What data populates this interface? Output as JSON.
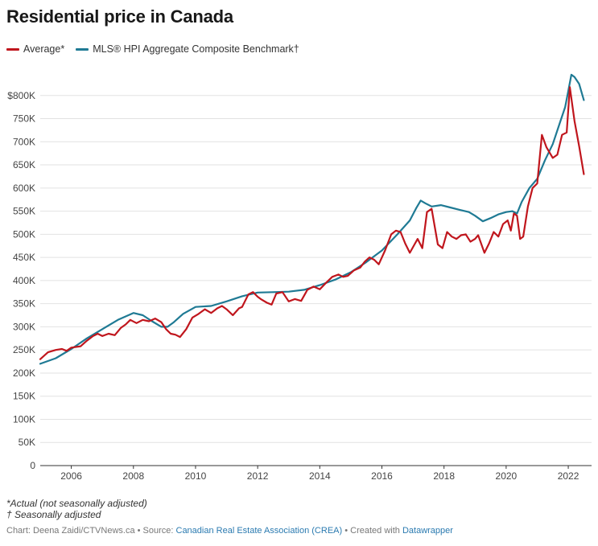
{
  "title": "Residential price in Canada",
  "notes": {
    "note1": "*Actual (not seasonally adjusted)",
    "note2": "† Seasonally adjusted"
  },
  "footer": {
    "chart_by": "Chart: Deena Zaidi/CTVNews.ca",
    "sep1": " • Source: ",
    "source": "Canadian Real Estate Association (CREA)",
    "sep2": " • Created with ",
    "tool": "Datawrapper"
  },
  "chart_data": {
    "type": "line",
    "title": "Residential price in Canada",
    "xlabel": "",
    "ylabel": "",
    "xlim": [
      2005.0,
      2022.75
    ],
    "ylim": [
      0,
      850000
    ],
    "grid": true,
    "legend_placement": "top-left",
    "y_ticks": [
      0,
      50000,
      100000,
      150000,
      200000,
      250000,
      300000,
      350000,
      400000,
      450000,
      500000,
      550000,
      600000,
      650000,
      700000,
      750000,
      800000
    ],
    "y_tick_labels": [
      "0",
      "50K",
      "100K",
      "150K",
      "200K",
      "250K",
      "300K",
      "350K",
      "400K",
      "450K",
      "500K",
      "550K",
      "600K",
      "650K",
      "700K",
      "750K",
      "$800K"
    ],
    "x_ticks": [
      2006,
      2008,
      2010,
      2012,
      2014,
      2016,
      2018,
      2020,
      2022
    ],
    "x_tick_labels": [
      "2006",
      "2008",
      "2010",
      "2012",
      "2014",
      "2016",
      "2018",
      "2020",
      "2022"
    ],
    "series": [
      {
        "name": "Average*",
        "color": "#c0161d",
        "x": [
          2005.0,
          2005.25,
          2005.5,
          2005.7,
          2005.85,
          2006.0,
          2006.3,
          2006.5,
          2006.7,
          2006.85,
          2007.0,
          2007.2,
          2007.4,
          2007.6,
          2007.75,
          2007.9,
          2008.1,
          2008.3,
          2008.5,
          2008.7,
          2008.9,
          2009.05,
          2009.2,
          2009.35,
          2009.5,
          2009.7,
          2009.9,
          2010.1,
          2010.3,
          2010.5,
          2010.7,
          2010.85,
          2011.0,
          2011.2,
          2011.4,
          2011.5,
          2011.7,
          2011.85,
          2012.0,
          2012.1,
          2012.3,
          2012.45,
          2012.6,
          2012.8,
          2013.0,
          2013.2,
          2013.4,
          2013.6,
          2013.8,
          2014.0,
          2014.2,
          2014.4,
          2014.6,
          2014.75,
          2014.9,
          2015.1,
          2015.3,
          2015.45,
          2015.6,
          2015.75,
          2015.9,
          2016.1,
          2016.3,
          2016.45,
          2016.6,
          2016.75,
          2016.9,
          2017.05,
          2017.15,
          2017.3,
          2017.45,
          2017.6,
          2017.8,
          2017.95,
          2018.1,
          2018.25,
          2018.4,
          2018.55,
          2018.7,
          2018.85,
          2019.0,
          2019.1,
          2019.3,
          2019.45,
          2019.6,
          2019.75,
          2019.9,
          2020.05,
          2020.15,
          2020.25,
          2020.35,
          2020.45,
          2020.55,
          2020.7,
          2020.85,
          2021.0,
          2021.15,
          2021.3,
          2021.5,
          2021.65,
          2021.8,
          2021.95,
          2022.05,
          2022.2,
          2022.35,
          2022.5
        ],
        "y": [
          230000,
          245000,
          250000,
          252000,
          248000,
          255000,
          258000,
          270000,
          280000,
          285000,
          280000,
          285000,
          282000,
          298000,
          305000,
          315000,
          308000,
          315000,
          312000,
          318000,
          310000,
          295000,
          285000,
          283000,
          278000,
          295000,
          320000,
          328000,
          338000,
          330000,
          340000,
          345000,
          338000,
          325000,
          340000,
          343000,
          370000,
          375000,
          365000,
          360000,
          352000,
          348000,
          372000,
          375000,
          355000,
          360000,
          356000,
          380000,
          387000,
          381000,
          395000,
          408000,
          413000,
          408000,
          410000,
          422000,
          428000,
          441000,
          450000,
          445000,
          435000,
          465000,
          500000,
          508000,
          505000,
          480000,
          460000,
          478000,
          490000,
          470000,
          548000,
          555000,
          478000,
          470000,
          505000,
          495000,
          490000,
          498000,
          500000,
          484000,
          490000,
          498000,
          460000,
          480000,
          505000,
          495000,
          522000,
          530000,
          508000,
          545000,
          540000,
          490000,
          495000,
          560000,
          600000,
          610000,
          715000,
          688000,
          665000,
          672000,
          715000,
          720000,
          818000,
          745000,
          690000,
          630000
        ]
      },
      {
        "name": "MLS® HPI Aggregate Composite Benchmark†",
        "color": "#1f7a94",
        "x": [
          2005.0,
          2005.5,
          2006.0,
          2006.5,
          2007.0,
          2007.5,
          2008.0,
          2008.3,
          2008.6,
          2008.9,
          2009.1,
          2009.3,
          2009.6,
          2010.0,
          2010.5,
          2011.0,
          2011.5,
          2012.0,
          2012.5,
          2013.0,
          2013.5,
          2014.0,
          2014.5,
          2015.0,
          2015.5,
          2016.0,
          2016.5,
          2016.9,
          2017.1,
          2017.25,
          2017.4,
          2017.6,
          2017.9,
          2018.2,
          2018.5,
          2018.8,
          2019.0,
          2019.25,
          2019.5,
          2019.75,
          2020.0,
          2020.2,
          2020.35,
          2020.5,
          2020.75,
          2021.0,
          2021.25,
          2021.5,
          2021.75,
          2021.9,
          2022.0,
          2022.1,
          2022.2,
          2022.35,
          2022.5
        ],
        "y": [
          220000,
          232000,
          252000,
          275000,
          295000,
          315000,
          330000,
          325000,
          312000,
          300000,
          300000,
          310000,
          328000,
          343000,
          345000,
          355000,
          366000,
          374000,
          375000,
          376000,
          380000,
          390000,
          402000,
          418000,
          440000,
          465000,
          500000,
          530000,
          556000,
          573000,
          567000,
          560000,
          563000,
          558000,
          553000,
          548000,
          540000,
          528000,
          535000,
          543000,
          548000,
          550000,
          545000,
          570000,
          600000,
          620000,
          660000,
          695000,
          745000,
          775000,
          810000,
          845000,
          840000,
          825000,
          790000
        ]
      }
    ]
  }
}
